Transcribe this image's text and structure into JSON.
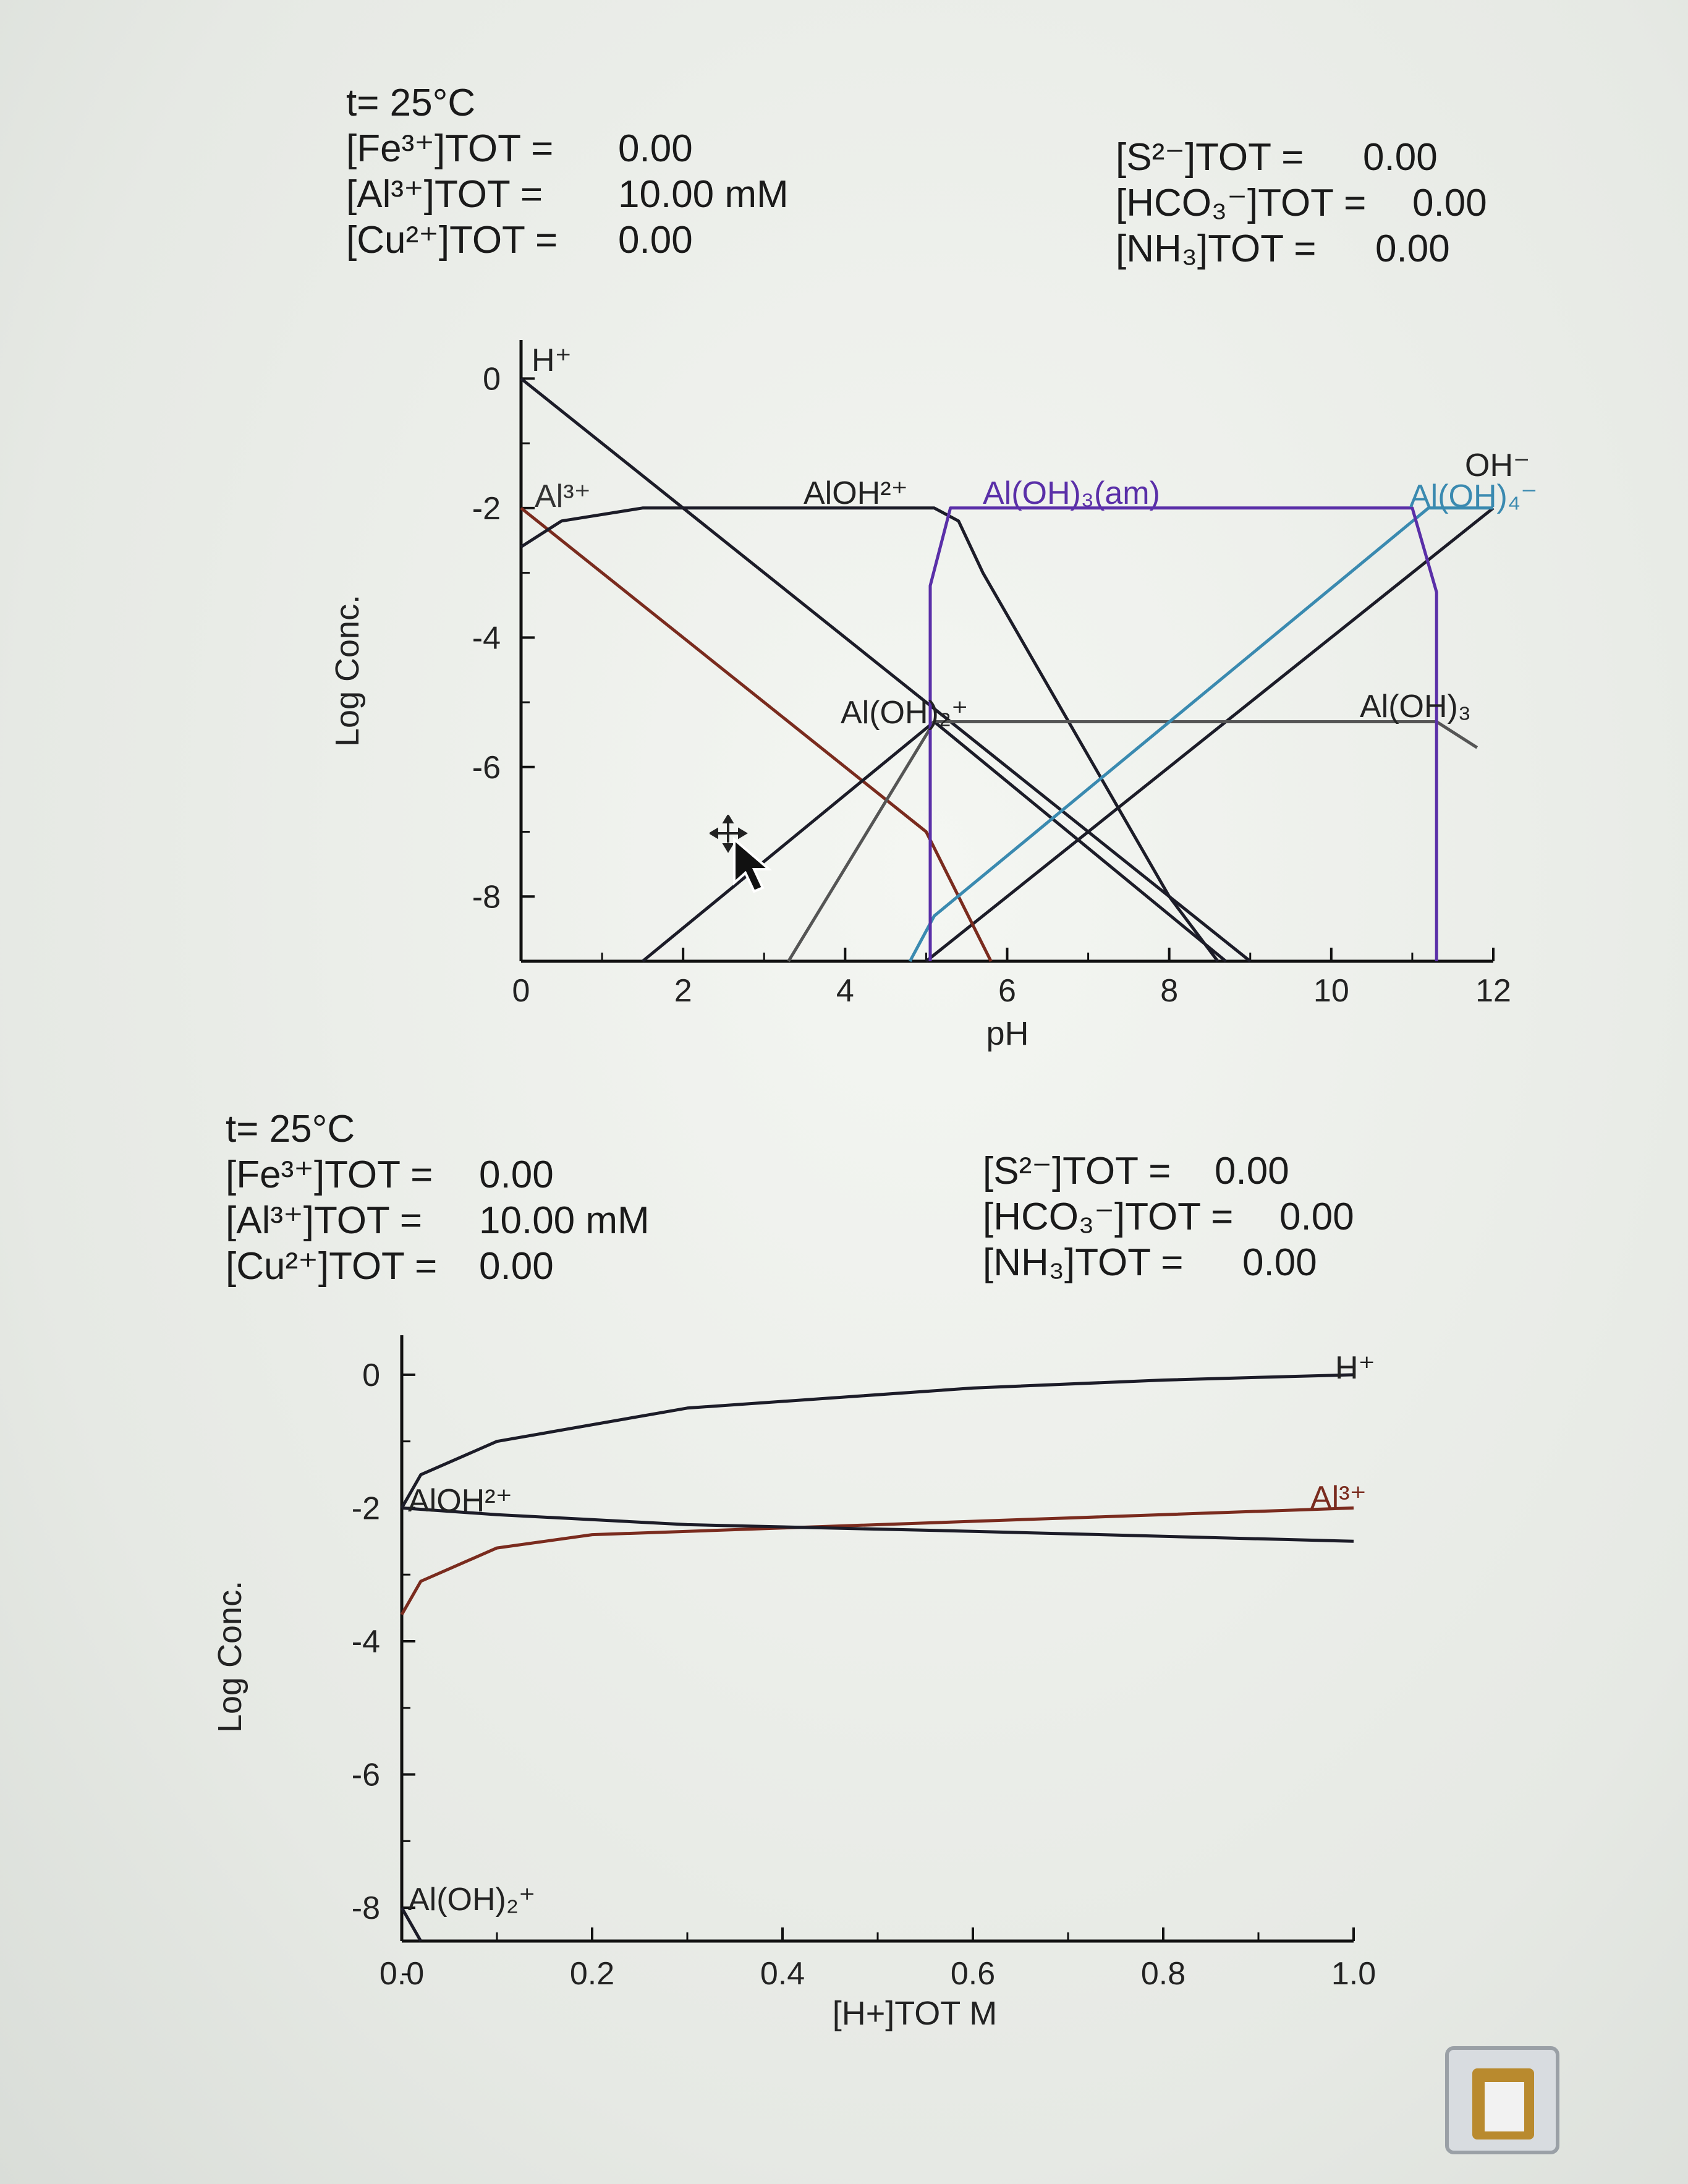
{
  "header1": {
    "left": [
      {
        "name": "t= 25°C",
        "value": ""
      },
      {
        "name": "[Fe³⁺]TOT =",
        "value": "0.00"
      },
      {
        "name": "[Al³⁺]TOT =",
        "value": "10.00 mM"
      },
      {
        "name": "[Cu²⁺]TOT =",
        "value": "0.00"
      }
    ],
    "right": [
      {
        "name": "[S²⁻]TOT =",
        "value": "0.00"
      },
      {
        "name": "[HCO₃⁻]TOT =",
        "value": "0.00"
      },
      {
        "name": "[NH₃]TOT =",
        "value": "0.00"
      }
    ]
  },
  "header2": {
    "left": [
      {
        "name": "t= 25°C",
        "value": ""
      },
      {
        "name": "[Fe³⁺]TOT =",
        "value": "0.00"
      },
      {
        "name": "[Al³⁺]TOT =",
        "value": "10.00 mM"
      },
      {
        "name": "[Cu²⁺]TOT =",
        "value": "0.00"
      }
    ],
    "right": [
      {
        "name": "[S²⁻]TOT =",
        "value": "0.00"
      },
      {
        "name": "[HCO₃⁻]TOT =",
        "value": "0.00"
      },
      {
        "name": "[NH₃]TOT =",
        "value": "0.00"
      }
    ]
  },
  "colors": {
    "black": "#1c1c28",
    "brown": "#7a2b1e",
    "purple": "#5a2fa8",
    "teal": "#3a8ab0",
    "gray": "#555555",
    "axis": "#111111"
  },
  "chart_data": [
    {
      "type": "line",
      "xlabel": "pH",
      "ylabel": "Log Conc.",
      "xlim": [
        0,
        12
      ],
      "ylim": [
        -9,
        0.5
      ],
      "xticks": [
        0,
        2,
        4,
        6,
        8,
        10,
        12
      ],
      "yticks": [
        0,
        -2,
        -4,
        -6,
        -8
      ],
      "series": [
        {
          "name": "H+",
          "color": "black",
          "points": [
            [
              0,
              0
            ],
            [
              9,
              -9
            ]
          ]
        },
        {
          "name": "OH-",
          "color": "black",
          "points": [
            [
              5,
              -9
            ],
            [
              12,
              -2
            ]
          ]
        },
        {
          "name": "Al3+",
          "color": "brown",
          "points": [
            [
              0,
              -2
            ],
            [
              5,
              -7
            ],
            [
              5.8,
              -9
            ]
          ]
        },
        {
          "name": "AlOH2+",
          "color": "black",
          "points": [
            [
              0,
              -2.6
            ],
            [
              0.5,
              -2.2
            ],
            [
              1.5,
              -2.0
            ],
            [
              5.1,
              -2.0
            ],
            [
              5.4,
              -2.2
            ],
            [
              5.7,
              -3.0
            ],
            [
              8.0,
              -8.0
            ],
            [
              8.6,
              -9
            ]
          ]
        },
        {
          "name": "Al(OH)2+",
          "color": "black",
          "points": [
            [
              1.5,
              -9
            ],
            [
              5.1,
              -5.3
            ],
            [
              8.7,
              -9
            ]
          ]
        },
        {
          "name": "Al(OH)3",
          "color": "gray",
          "points": [
            [
              3.3,
              -9
            ],
            [
              5.1,
              -5.3
            ],
            [
              11.3,
              -5.3
            ],
            [
              11.8,
              -5.7
            ]
          ]
        },
        {
          "name": "Al(OH)4-",
          "color": "teal",
          "points": [
            [
              4.8,
              -9
            ],
            [
              5.1,
              -8.3
            ],
            [
              11.2,
              -2.0
            ],
            [
              12,
              -2.0
            ]
          ]
        },
        {
          "name": "Al(OH)3(am)",
          "color": "purple",
          "points": [
            [
              5.05,
              -9
            ],
            [
              5.05,
              -3.2
            ],
            [
              5.3,
              -2.0
            ],
            [
              11.0,
              -2.0
            ],
            [
              11.3,
              -3.3
            ],
            [
              11.3,
              -9
            ]
          ]
        }
      ],
      "labels": [
        "H+",
        "Al3+",
        "AlOH2+",
        "Al(OH)3(am)",
        "Al(OH)2+",
        "OH-",
        "Al(OH)4-",
        "Al(OH)3"
      ]
    },
    {
      "type": "line",
      "xlabel": "[H+]TOT  M",
      "ylabel": "Log Conc.",
      "xlim": [
        0,
        1.0
      ],
      "ylim": [
        -8.5,
        0.5
      ],
      "xticks": [
        0.0,
        0.2,
        0.4,
        0.6,
        0.8,
        1.0
      ],
      "xticklabels": [
        "0.0",
        "0.2",
        "0.4",
        "0.6",
        "0.8",
        "1.0"
      ],
      "yticks": [
        0,
        -2,
        -4,
        -6,
        -8
      ],
      "series": [
        {
          "name": "H+",
          "color": "black",
          "points": [
            [
              0,
              -2.0
            ],
            [
              0.02,
              -1.5
            ],
            [
              0.1,
              -1.0
            ],
            [
              0.3,
              -0.5
            ],
            [
              0.6,
              -0.2
            ],
            [
              0.8,
              -0.08
            ],
            [
              1.0,
              0
            ]
          ]
        },
        {
          "name": "Al3+",
          "color": "brown",
          "points": [
            [
              0,
              -3.6
            ],
            [
              0.02,
              -3.1
            ],
            [
              0.1,
              -2.6
            ],
            [
              0.2,
              -2.4
            ],
            [
              0.4,
              -2.3
            ],
            [
              0.7,
              -2.15
            ],
            [
              1.0,
              -2.0
            ]
          ]
        },
        {
          "name": "AlOH2+",
          "color": "black",
          "points": [
            [
              0,
              -2.0
            ],
            [
              0.1,
              -2.1
            ],
            [
              0.3,
              -2.25
            ],
            [
              0.6,
              -2.35
            ],
            [
              1.0,
              -2.5
            ]
          ]
        },
        {
          "name": "Al(OH)2+",
          "color": "black",
          "points": [
            [
              0,
              -8.0
            ],
            [
              0.02,
              -8.5
            ]
          ]
        }
      ],
      "labels": [
        "H+",
        "Al3+",
        "AlOH2+",
        "Al(OH)2+"
      ]
    }
  ]
}
